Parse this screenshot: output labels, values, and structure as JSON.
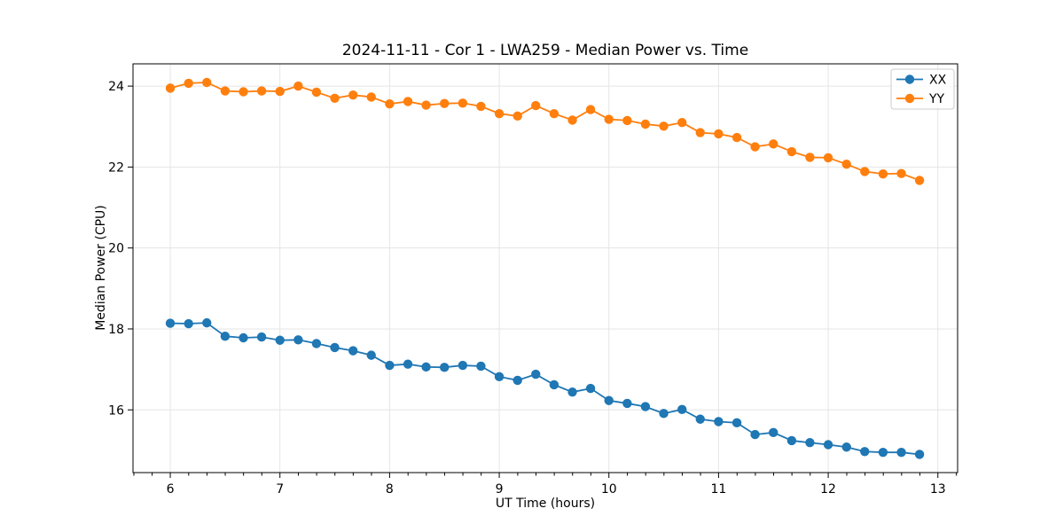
{
  "figure": {
    "background": "#ffffff"
  },
  "chart_data": {
    "type": "line",
    "title": "2024-11-11 - Cor 1 - LWA259 - Median Power vs. Time",
    "xlabel": "UT Time (hours)",
    "ylabel": "Median Power (CPU)",
    "xlim": [
      5.66,
      13.18
    ],
    "ylim": [
      14.45,
      24.55
    ],
    "xticks": [
      6,
      7,
      8,
      9,
      10,
      11,
      12,
      13
    ],
    "yticks": [
      16,
      18,
      20,
      22,
      24
    ],
    "x_minor_step": 0.1667,
    "grid": true,
    "legend_position": "upper right",
    "marker": "circle",
    "x": [
      6.0,
      6.167,
      6.333,
      6.5,
      6.667,
      6.833,
      7.0,
      7.167,
      7.333,
      7.5,
      7.667,
      7.833,
      8.0,
      8.167,
      8.333,
      8.5,
      8.667,
      8.833,
      9.0,
      9.167,
      9.333,
      9.5,
      9.667,
      9.833,
      10.0,
      10.167,
      10.333,
      10.5,
      10.667,
      10.833,
      11.0,
      11.167,
      11.333,
      11.5,
      11.667,
      11.833,
      12.0,
      12.167,
      12.333,
      12.5,
      12.667,
      12.833
    ],
    "series": [
      {
        "name": "XX",
        "color": "#1f77b4",
        "values": [
          18.14,
          18.13,
          18.15,
          17.82,
          17.78,
          17.8,
          17.72,
          17.73,
          17.64,
          17.54,
          17.46,
          17.35,
          17.1,
          17.13,
          17.06,
          17.05,
          17.1,
          17.08,
          16.82,
          16.73,
          16.88,
          16.62,
          16.44,
          16.53,
          16.23,
          16.16,
          16.08,
          15.91,
          16.01,
          15.77,
          15.71,
          15.68,
          15.39,
          15.44,
          15.24,
          15.19,
          15.14,
          15.08,
          14.97,
          14.95,
          14.95,
          14.9
        ]
      },
      {
        "name": "YY",
        "color": "#ff7f0e",
        "values": [
          23.95,
          24.07,
          24.09,
          23.88,
          23.86,
          23.88,
          23.87,
          24.0,
          23.85,
          23.7,
          23.78,
          23.73,
          23.56,
          23.62,
          23.53,
          23.57,
          23.58,
          23.5,
          23.32,
          23.26,
          23.52,
          23.32,
          23.16,
          23.42,
          23.18,
          23.15,
          23.06,
          23.01,
          23.1,
          22.85,
          22.82,
          22.73,
          22.5,
          22.57,
          22.38,
          22.24,
          22.23,
          22.07,
          21.89,
          21.83,
          21.84,
          21.67
        ]
      }
    ]
  }
}
